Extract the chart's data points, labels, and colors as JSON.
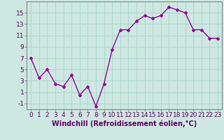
{
  "x": [
    0,
    1,
    2,
    3,
    4,
    5,
    6,
    7,
    8,
    9,
    10,
    11,
    12,
    13,
    14,
    15,
    16,
    17,
    18,
    19,
    20,
    21,
    22,
    23
  ],
  "y": [
    7,
    3.5,
    5,
    2.5,
    2,
    4,
    0.5,
    2,
    -1.5,
    2.5,
    8.5,
    12,
    12,
    13.5,
    14.5,
    14,
    14.5,
    16,
    15.5,
    15,
    12,
    12,
    10.5,
    10.5
  ],
  "line_color": "#990099",
  "marker": "D",
  "markersize": 2,
  "linewidth": 1.0,
  "bg_color": "#cce8e0",
  "grid_color": "#b0d8d0",
  "xlabel": "Windchill (Refroidissement éolien,°C)",
  "xlabel_color": "#660066",
  "tick_color": "#660066",
  "xlim": [
    -0.5,
    23.5
  ],
  "ylim": [
    -2,
    17
  ],
  "yticks": [
    -1,
    1,
    3,
    5,
    7,
    9,
    11,
    13,
    15
  ],
  "xticks": [
    0,
    1,
    2,
    3,
    4,
    5,
    6,
    7,
    8,
    9,
    10,
    11,
    12,
    13,
    14,
    15,
    16,
    17,
    18,
    19,
    20,
    21,
    22,
    23
  ],
  "tick_fontsize": 6.5,
  "xlabel_fontsize": 7.0
}
